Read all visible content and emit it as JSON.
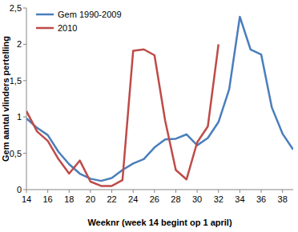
{
  "chart_data": {
    "type": "line",
    "x_label": "Weeknr (week 14 begint op 1 april)",
    "y_label": "Gem aantal vlinders pertelling",
    "x": [
      14,
      15,
      16,
      17,
      18,
      19,
      20,
      21,
      22,
      23,
      24,
      25,
      26,
      27,
      28,
      29,
      30,
      31,
      32,
      33,
      34,
      35,
      36,
      37,
      38,
      39
    ],
    "series": [
      {
        "name": "Gem 1990-2009",
        "color": "#4a7ebb",
        "values": [
          0.98,
          0.85,
          0.75,
          0.52,
          0.35,
          0.22,
          0.15,
          0.12,
          0.16,
          0.27,
          0.36,
          0.42,
          0.58,
          0.69,
          0.7,
          0.76,
          0.61,
          0.71,
          0.93,
          1.38,
          2.38,
          1.93,
          1.86,
          1.13,
          0.77,
          0.55
        ]
      },
      {
        "name": "2010",
        "color": "#be4b48",
        "values": [
          1.08,
          0.8,
          0.67,
          0.42,
          0.22,
          0.4,
          0.11,
          0.05,
          0.05,
          0.13,
          1.91,
          1.93,
          1.85,
          0.95,
          0.27,
          0.14,
          0.65,
          0.87,
          2.0,
          null,
          null,
          null,
          null,
          null,
          null,
          null
        ]
      }
    ],
    "xlim": [
      14,
      39
    ],
    "xticks": [
      14,
      16,
      18,
      20,
      22,
      24,
      26,
      28,
      30,
      32,
      34,
      36,
      38
    ],
    "ylim": [
      0,
      2.5
    ],
    "yticks": [
      0,
      {
        "value": 0.5,
        "label": "0,5"
      },
      1,
      {
        "value": 1.5,
        "label": "1,5"
      },
      2,
      {
        "value": 2.5,
        "label": "2,5"
      }
    ],
    "grid": false,
    "legend": "top-left"
  }
}
